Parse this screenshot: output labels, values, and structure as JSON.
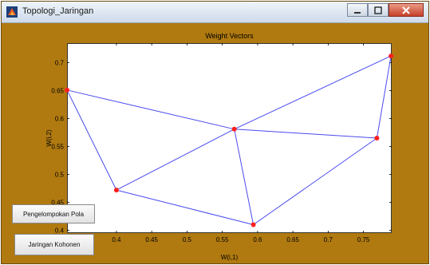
{
  "window": {
    "title": "Topologi_Jaringan"
  },
  "buttons": {
    "pengelompokan": "Pengelompokan Pola",
    "jaringan": "Jaringan Kohonen"
  },
  "colors": {
    "figure_bg": "#b07a10",
    "line": "#4a4af0",
    "marker": "#ff2020"
  },
  "chart_data": {
    "type": "scatter",
    "title": "Weight Vectors",
    "xlabel": "W(i,1)",
    "ylabel": "W(i,2)",
    "xlim": [
      0.33,
      0.79
    ],
    "ylim": [
      0.395,
      0.735
    ],
    "xticks": [
      0.4,
      0.45,
      0.5,
      0.55,
      0.6,
      0.65,
      0.7,
      0.75
    ],
    "xtick_labels": [
      "0.4",
      "0.45",
      "0.5",
      "0.55",
      "0.6",
      "0.65",
      "0.7",
      "0.75"
    ],
    "yticks": [
      0.4,
      0.45,
      0.5,
      0.55,
      0.6,
      0.65,
      0.7
    ],
    "ytick_labels": [
      "0.4",
      "0.45",
      "0.5",
      "0.55",
      "0.6",
      "0.65",
      "0.7"
    ],
    "points": [
      {
        "x": 0.33,
        "y": 0.651
      },
      {
        "x": 0.567,
        "y": 0.581
      },
      {
        "x": 0.789,
        "y": 0.712
      },
      {
        "x": 0.4,
        "y": 0.472
      },
      {
        "x": 0.594,
        "y": 0.41
      },
      {
        "x": 0.769,
        "y": 0.565
      }
    ],
    "edges": [
      [
        0,
        1
      ],
      [
        1,
        2
      ],
      [
        0,
        3
      ],
      [
        3,
        1
      ],
      [
        1,
        4
      ],
      [
        1,
        5
      ],
      [
        3,
        4
      ],
      [
        4,
        5
      ],
      [
        5,
        2
      ]
    ],
    "grid": false
  }
}
